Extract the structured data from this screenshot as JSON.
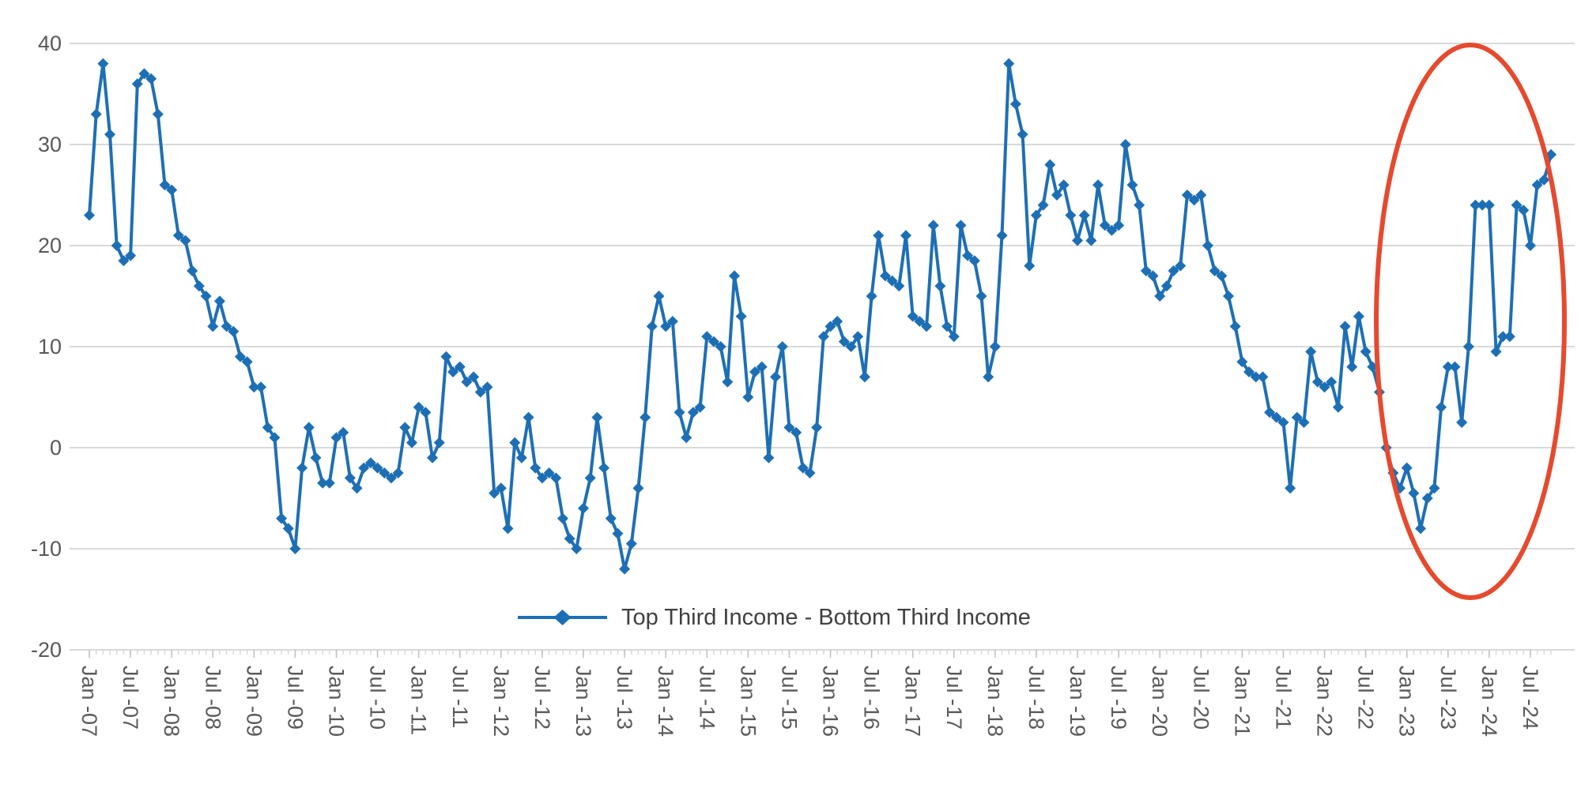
{
  "page": {
    "background_color": "#FFFFFF"
  },
  "chart_data": {
    "type": "line",
    "title": "",
    "legend": {
      "label": "Top Third Income - Bottom Third Income",
      "position": "bottom-center"
    },
    "series": [
      {
        "name": "Top Third Income - Bottom Third Income",
        "color": "#1D6FB5",
        "marker": "diamond",
        "line_width": 4,
        "start_month": "Jan-2007",
        "frequency": "monthly",
        "values": [
          23,
          33,
          38,
          31,
          20,
          18.5,
          19,
          36,
          37,
          36.5,
          33,
          26,
          25.5,
          21,
          20.5,
          17.5,
          16,
          15,
          12,
          14.5,
          12,
          11.5,
          9,
          8.5,
          6,
          6,
          2,
          1,
          -7,
          -8,
          -10,
          -2,
          2,
          -1,
          -3.5,
          -3.5,
          1,
          1.5,
          -3,
          -4,
          -2,
          -1.5,
          -2,
          -2.5,
          -3,
          -2.5,
          2,
          0.5,
          4,
          3.5,
          -1,
          0.5,
          9,
          7.5,
          8,
          6.5,
          7,
          5.5,
          6,
          -4.5,
          -4,
          -8,
          0.5,
          -1,
          3,
          -2,
          -3,
          -2.5,
          -3,
          -7,
          -9,
          -10,
          -6,
          -3,
          3,
          -2,
          -7,
          -8.5,
          -12,
          -9.5,
          -4,
          3,
          12,
          15,
          12,
          12.5,
          3.5,
          1,
          3.5,
          4,
          11,
          10.5,
          10,
          6.5,
          17,
          13,
          5,
          7.5,
          8,
          -1,
          7,
          10,
          2,
          1.5,
          -2,
          -2.5,
          2,
          11,
          12,
          12.5,
          10.5,
          10,
          11,
          7,
          15,
          21,
          17,
          16.5,
          16,
          21,
          13,
          12.5,
          12,
          22,
          16,
          12,
          11,
          22,
          19,
          18.5,
          15,
          7,
          10,
          21,
          38,
          34,
          31,
          18,
          23,
          24,
          28,
          25,
          26,
          23,
          20.5,
          23,
          20.5,
          26,
          22,
          21.5,
          22,
          30,
          26,
          24,
          17.5,
          17,
          15,
          16,
          17.5,
          18,
          25,
          24.5,
          25,
          20,
          17.5,
          17,
          15,
          12,
          8.5,
          7.5,
          7,
          7,
          3.5,
          3,
          2.5,
          -4,
          3,
          2.5,
          9.5,
          6.5,
          6,
          6.5,
          4,
          12,
          8,
          13,
          9.5,
          8,
          5.5,
          0,
          -2.5,
          -4,
          -2,
          -4.5,
          -8,
          -5,
          -4,
          4,
          8,
          8,
          2.5,
          10,
          24,
          24,
          24,
          9.5,
          11,
          11,
          24,
          23.5,
          20,
          26,
          26.5,
          29
        ]
      }
    ],
    "x_axis": {
      "tick_every_months": 6,
      "tick_labels": [
        "Jan -07",
        "Jul -07",
        "Jan -08",
        "Jul -08",
        "Jan -09",
        "Jul -09",
        "Jan -10",
        "Jul -10",
        "Jan -11",
        "Jul -11",
        "Jan -12",
        "Jul -12",
        "Jan -13",
        "Jul -13",
        "Jan -14",
        "Jul -14",
        "Jan -15",
        "Jul -15",
        "Jan -16",
        "Jul -16",
        "Jan -17",
        "Jul -17",
        "Jan -18",
        "Jul -18",
        "Jan -19",
        "Jul -19",
        "Jan -20",
        "Jul -20",
        "Jan -21",
        "Jul -21",
        "Jan -22",
        "Jul -22",
        "Jan -23",
        "Jul -23",
        "Jan -24",
        "Jul -24"
      ],
      "label_rotation_degrees": 90,
      "label_color": "#595959"
    },
    "y_axis": {
      "ticks": [
        40,
        30,
        20,
        10,
        0,
        -10,
        -20
      ],
      "min": -20,
      "max": 40,
      "label_color": "#595959"
    },
    "grid": {
      "horizontal": true,
      "color": "#D9D9D9"
    },
    "annotation": {
      "shape": "ellipse",
      "color": "#E64A2E",
      "stroke_width": 6,
      "region": "Dec-2022 through latest data (2024)"
    }
  }
}
